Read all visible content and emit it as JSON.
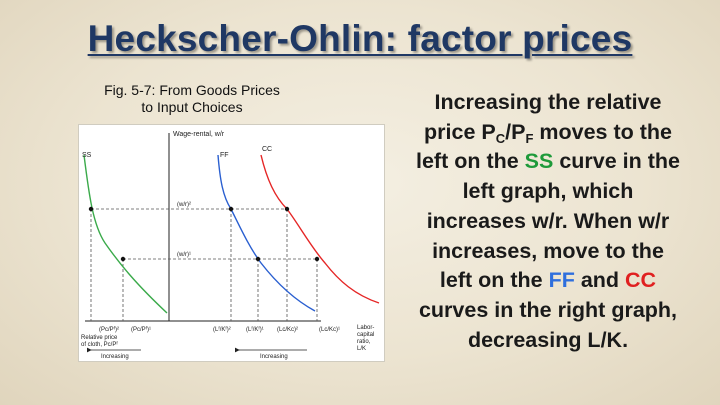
{
  "title": "Heckscher-Ohlin: factor prices",
  "caption": {
    "line1": "Fig. 5-7:  From Goods Prices",
    "line2": "to Input Choices"
  },
  "graph": {
    "y_axis_label": "Wage-rental, w/r",
    "wr2_label": "(w/r)²",
    "wr1_label": "(w/r)¹",
    "ss_label": "SS",
    "ff_label": "FF",
    "cc_label": "CC",
    "left_x_label_line1": "Relative price",
    "left_x_label_line2": "of cloth, Pᴄ/Pᶠ",
    "pc_pf_2": "(Pᴄ/Pᶠ)²",
    "pc_pf_1": "(Pᴄ/Pᶠ)¹",
    "lf_kf_2": "(Lᶠ/Kᶠ)²",
    "lf_kf_1": "(Lᶠ/Kᶠ)¹",
    "lc_kc_2": "(Lᴄ/Kᴄ)²",
    "lc_kc_1": "(Lᴄ/Kᴄ)¹",
    "right_x_label_line1": "Labor-",
    "right_x_label_line2": "capital",
    "right_x_label_line3": "ratio,",
    "right_x_label_line4": "L/K",
    "increasing_left": "Increasing",
    "increasing_right": "Increasing",
    "colors": {
      "ss": "#3aaa4a",
      "ff": "#2a5fd0",
      "cc": "#e52626",
      "axes": "#222222"
    }
  },
  "explanation": {
    "p1": "Increasing the relative",
    "p2": "price P",
    "p2_sub1": "C",
    "p2_slash": "/P",
    "p2_sub2": "F",
    "p2_end": " moves to the",
    "p3": "left on the ",
    "p3_ss": "SS",
    "p3_end": " curve in the",
    "p4": "left graph, which",
    "p5": "increases w/r.  When w/r",
    "p6": "increases, move to the",
    "p7": "left on the ",
    "p7_ff": "FF",
    "p7_and": " and ",
    "p7_cc": "CC",
    "p8": "curves in the right graph,",
    "p9": "decreasing L/K."
  }
}
